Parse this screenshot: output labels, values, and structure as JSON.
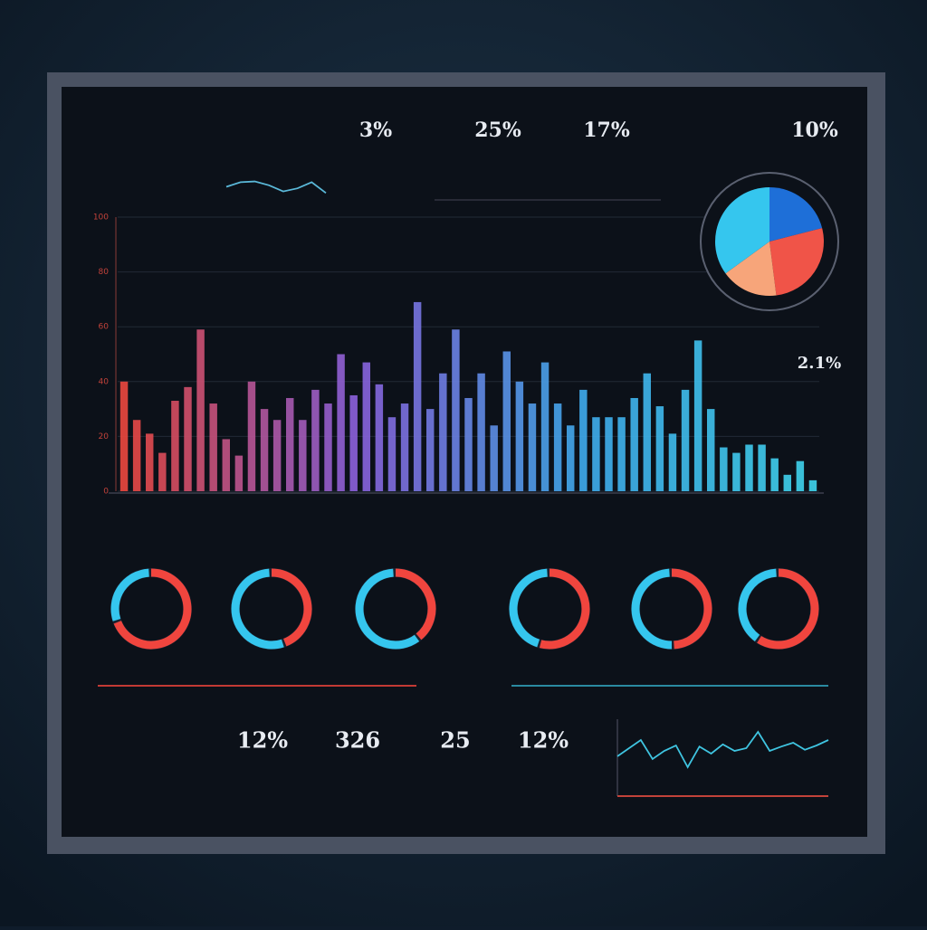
{
  "kpis": [
    "3%",
    "25%",
    "17%",
    "10%",
    "2.1%",
    "12%",
    "326",
    "25",
    "12%"
  ],
  "chart_data": [
    {
      "type": "bar",
      "values": [
        40,
        26,
        21,
        14,
        33,
        38,
        59,
        32,
        19,
        13,
        40,
        30,
        26,
        34,
        26,
        37,
        32,
        50,
        35,
        47,
        39,
        27,
        32,
        69,
        30,
        43,
        59,
        34,
        43,
        24,
        51,
        40,
        32,
        47,
        32,
        24,
        37,
        27,
        27,
        27,
        34,
        43,
        31,
        21,
        37,
        55,
        30,
        16,
        14,
        17,
        17,
        12,
        6,
        11,
        4
      ],
      "gradient": [
        "#e8473e",
        "#8a5fd8",
        "#3fa8e8",
        "#3fd0e8"
      ],
      "ylim": [
        0,
        100
      ],
      "yticks": [
        0,
        20,
        40,
        60,
        80,
        100
      ],
      "grid": true
    },
    {
      "type": "pie",
      "values": [
        21,
        27,
        17,
        35
      ],
      "colors": [
        "#1e6fd8",
        "#f05448",
        "#f7a57a",
        "#35c6ee"
      ]
    },
    {
      "type": "donuts",
      "series": [
        {
          "values": [
            70,
            30
          ]
        },
        {
          "values": [
            45,
            55
          ]
        },
        {
          "values": [
            40,
            60
          ]
        },
        {
          "values": [
            55,
            45
          ]
        },
        {
          "values": [
            50,
            50
          ]
        },
        {
          "values": [
            60,
            40
          ]
        }
      ],
      "colors": [
        "#f0453e",
        "#35c6ee"
      ]
    },
    {
      "type": "line",
      "values": [
        40,
        55,
        70,
        35,
        50,
        60,
        20,
        58,
        45,
        62,
        50,
        55,
        85,
        50,
        58,
        65,
        52,
        60,
        70
      ],
      "color": "#3fc4e0",
      "ylim": [
        0,
        100
      ]
    },
    {
      "type": "sparkline",
      "values": [
        50,
        80,
        85,
        60,
        20,
        40,
        80,
        10
      ],
      "color": "#5ab8d8",
      "ylim": [
        0,
        100
      ]
    }
  ]
}
